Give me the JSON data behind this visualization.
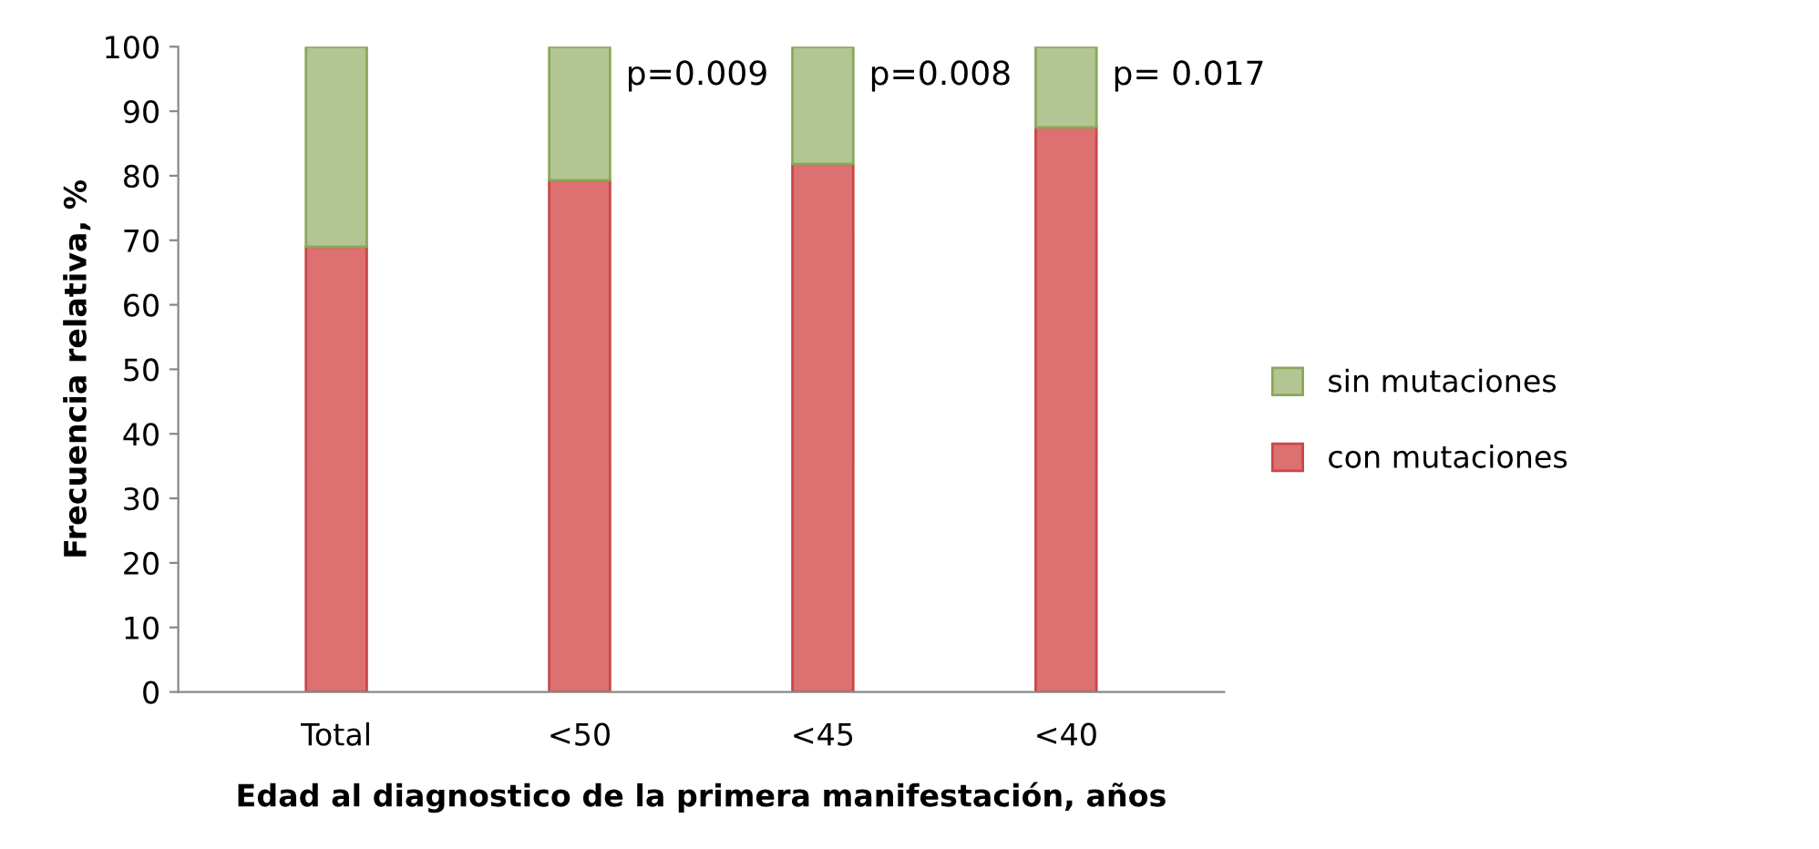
{
  "chart_data": {
    "type": "bar",
    "stacked": true,
    "xlabel": "Edad al diagnostico de la primera manifestación, años",
    "ylabel": "Frecuencia relativa, %",
    "categories": [
      "Total",
      "<50",
      "<45",
      "<40"
    ],
    "series": [
      {
        "name": "con mutaciones",
        "color": "#dd7070",
        "values": [
          69,
          79.3,
          81.8,
          87.5
        ]
      },
      {
        "name": "sin mutaciones",
        "color": "#b3c592",
        "values": [
          31,
          20.7,
          18.2,
          12.5
        ]
      }
    ],
    "ylim": [
      0,
      100
    ],
    "yticks": [
      0,
      10,
      20,
      30,
      40,
      50,
      60,
      70,
      80,
      90,
      100
    ],
    "grid": false,
    "legend": "right",
    "annotations": [
      "p=0.009",
      "p=0.008",
      "p= 0.017"
    ]
  }
}
